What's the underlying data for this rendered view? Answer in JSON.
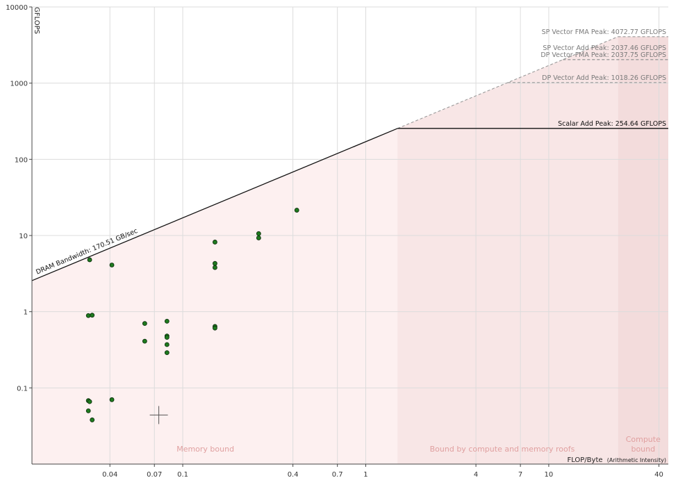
{
  "chart_data": {
    "type": "scatter",
    "title": "",
    "xlabel": "FLOP/Byte",
    "xlabel_note": "(Arithmetic Intensity)",
    "ylabel": "GFLOPS",
    "xscale": "log",
    "yscale": "log",
    "xlim": [
      0.015,
      45
    ],
    "ylim": [
      0.01,
      10000
    ],
    "grid": true,
    "x_ticks": [
      0.04,
      0.07,
      0.1,
      0.4,
      0.7,
      1,
      4,
      7,
      10,
      40
    ],
    "x_tick_labels": [
      "0.04",
      "0.07",
      "0.1",
      "0.4",
      "0.7",
      "1",
      "4",
      "7",
      "10",
      "40"
    ],
    "y_ticks": [
      0.1,
      1,
      10,
      100,
      1000,
      10000
    ],
    "y_tick_labels": [
      "0.1",
      "1",
      "10",
      "100",
      "1000",
      "10000"
    ],
    "memory_roof": {
      "label": "DRAM Bandwidth: 170.51 GB/sec",
      "bandwidth_gb_per_sec": 170.51
    },
    "compute_roofs": [
      {
        "label": "SP Vector FMA Peak: 4072.77 GFLOPS",
        "gflops": 4072.77,
        "style": "dashed"
      },
      {
        "label": "DP Vector FMA Peak: 2037.75 GFLOPS",
        "gflops": 2037.75,
        "style": "dashed"
      },
      {
        "label": "SP Vector Add Peak: 2037.46 GFLOPS",
        "gflops": 2037.46,
        "style": "dashed"
      },
      {
        "label": "DP Vector Add Peak: 1018.26 GFLOPS",
        "gflops": 1018.26,
        "style": "dashed"
      },
      {
        "label": "Scalar Add Peak: 254.64 GFLOPS",
        "gflops": 254.64,
        "style": "solid"
      }
    ],
    "regions": [
      {
        "label": "Memory bound",
        "x_range": [
          0.015,
          1.49
        ]
      },
      {
        "label": "Bound by compute and memory roofs",
        "x_range": [
          1.49,
          23.9
        ]
      },
      {
        "label": "Compute bound",
        "x_range": [
          23.9,
          45
        ]
      }
    ],
    "points": [
      {
        "x": 0.031,
        "y": 4.8
      },
      {
        "x": 0.041,
        "y": 4.1
      },
      {
        "x": 0.0305,
        "y": 0.89
      },
      {
        "x": 0.032,
        "y": 0.9
      },
      {
        "x": 0.0305,
        "y": 0.068
      },
      {
        "x": 0.031,
        "y": 0.066
      },
      {
        "x": 0.0305,
        "y": 0.05
      },
      {
        "x": 0.032,
        "y": 0.038
      },
      {
        "x": 0.041,
        "y": 0.07
      },
      {
        "x": 0.062,
        "y": 0.7
      },
      {
        "x": 0.062,
        "y": 0.41
      },
      {
        "x": 0.082,
        "y": 0.75
      },
      {
        "x": 0.082,
        "y": 0.48
      },
      {
        "x": 0.082,
        "y": 0.46
      },
      {
        "x": 0.082,
        "y": 0.37
      },
      {
        "x": 0.082,
        "y": 0.29
      },
      {
        "x": 0.15,
        "y": 8.2
      },
      {
        "x": 0.15,
        "y": 4.3
      },
      {
        "x": 0.15,
        "y": 3.8
      },
      {
        "x": 0.15,
        "y": 0.64
      },
      {
        "x": 0.15,
        "y": 0.61
      },
      {
        "x": 0.26,
        "y": 10.6
      },
      {
        "x": 0.26,
        "y": 9.3
      },
      {
        "x": 0.42,
        "y": 21.5
      }
    ],
    "crosshair": {
      "x": 0.074,
      "y": 0.044
    },
    "colors": {
      "point_fill": "#1f7a1f",
      "point_stroke": "#0a2a0a",
      "region_memory": "#fdf0f0",
      "region_mixed": "#f8e6e6",
      "region_compute": "#f3dcdc",
      "roof_solid": "#111111",
      "roof_dashed": "#999999",
      "region_text": "#e0a0a0"
    }
  }
}
